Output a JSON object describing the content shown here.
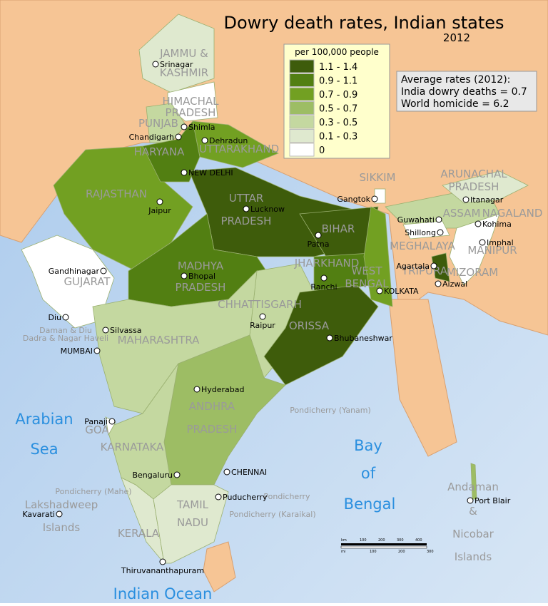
{
  "header": {
    "title": "Dowry death rates, Indian states",
    "year": "2012"
  },
  "legend": {
    "title": "per 100,000 people",
    "items": [
      {
        "label": "1.1 - 1.4",
        "color": "#3e5c0b"
      },
      {
        "label": "0.9 - 1.1",
        "color": "#527f12"
      },
      {
        "label": "0.7 - 0.9",
        "color": "#72a022"
      },
      {
        "label": "0.5 - 0.7",
        "color": "#9dbd64"
      },
      {
        "label": "0.3 - 0.5",
        "color": "#c4d8a0"
      },
      {
        "label": "0.1 - 0.3",
        "color": "#dfe9cf"
      },
      {
        "label": "0",
        "color": "#ffffff"
      }
    ]
  },
  "info": {
    "title": "Average rates (2012):",
    "lines": [
      "India dowry deaths = 0.7",
      "World homicide = 6.2"
    ]
  },
  "states": [
    "JAMMU &",
    "KASHMIR",
    "HIMACHAL",
    "PRADESH",
    "PUNJAB",
    "HARYANA",
    "UTTARAKHAND",
    "RAJASTHAN",
    "UTTAR",
    "PRADESH",
    "BIHAR",
    "GUJARAT",
    "MADHYA",
    "PRADESH",
    "JHARKHAND",
    "WEST",
    "BENGAL",
    "CHHATTISGARH",
    "ORISSA",
    "MAHARASHTRA",
    "ANDHRA",
    "PRADESH",
    "GOA",
    "KARNATAKA",
    "TAMIL",
    "NADU",
    "KERALA",
    "SIKKIM",
    "ARUNACHAL",
    "PRADESH",
    "ASSAM",
    "NAGALAND",
    "MEGHALAYA",
    "MANIPUR",
    "TRIPURA",
    "MIZORAM",
    "Daman & Diu",
    "Dadra & Nagar Haveli",
    "Pondicherry (Yanam)",
    "Pondicherry (Mahe)",
    "Pondicherry",
    "Pondicherry (Karaikal)",
    "Lakshadweep",
    "Islands",
    "Andaman",
    "&",
    "Nicobar",
    "Islands"
  ],
  "cities": [
    "Srinagar",
    "Shimla",
    "Chandigarh",
    "Dehradun",
    "NEW DELHI",
    "Jaipur",
    "Lucknow",
    "Patna",
    "Gangtok",
    "Itanagar",
    "Guwahati",
    "Shillong",
    "Kohima",
    "Imphal",
    "Agartala",
    "Aizwal",
    "Gandhinagar",
    "Bhopal",
    "Ranchi",
    "KOLKATA",
    "Diu",
    "Silvassa",
    "MUMBAI",
    "Raipur",
    "Bhubaneshwar",
    "Hyderabad",
    "Panaji",
    "CHENNAI",
    "Bengaluru",
    "Puducherry",
    "Kavarati",
    "Port Blair",
    "Thiruvananthapuram"
  ],
  "water": [
    "Arabian",
    "Sea",
    "Bay",
    "of",
    "Bengal",
    "Indian Ocean"
  ],
  "scale": {
    "km": [
      "km",
      "100",
      "200",
      "300",
      "400"
    ],
    "mi": [
      "mi",
      "100",
      "200",
      "300"
    ]
  }
}
